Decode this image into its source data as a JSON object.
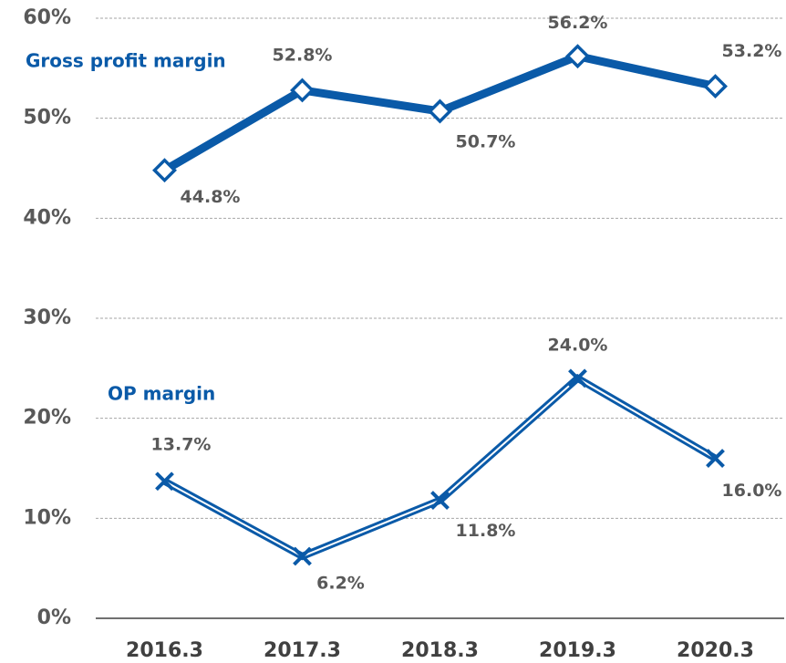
{
  "chart_data": {
    "type": "line",
    "categories": [
      "2016.3",
      "2017.3",
      "2018.3",
      "2019.3",
      "2020.3"
    ],
    "series": [
      {
        "name": "Gross profit margin",
        "color": "#0a5aa8",
        "marker": "diamond",
        "values": [
          44.8,
          52.8,
          50.7,
          56.2,
          53.2
        ],
        "value_labels": [
          "44.8%",
          "52.8%",
          "50.7%",
          "56.2%",
          "53.2%"
        ]
      },
      {
        "name": "OP margin",
        "color": "#0a5aa8",
        "marker": "x",
        "values": [
          13.7,
          6.2,
          11.8,
          24.0,
          16.0
        ],
        "value_labels": [
          "13.7%",
          "6.2%",
          "11.8%",
          "24.0%",
          "16.0%"
        ]
      }
    ],
    "ylim": [
      0,
      60
    ],
    "yticks": [
      {
        "value": 0,
        "label": "0%"
      },
      {
        "value": 10,
        "label": "10%"
      },
      {
        "value": 20,
        "label": "20%"
      },
      {
        "value": 30,
        "label": "30%"
      },
      {
        "value": 40,
        "label": "40%"
      },
      {
        "value": 50,
        "label": "50%"
      },
      {
        "value": 60,
        "label": "60%"
      }
    ],
    "grid": true
  }
}
